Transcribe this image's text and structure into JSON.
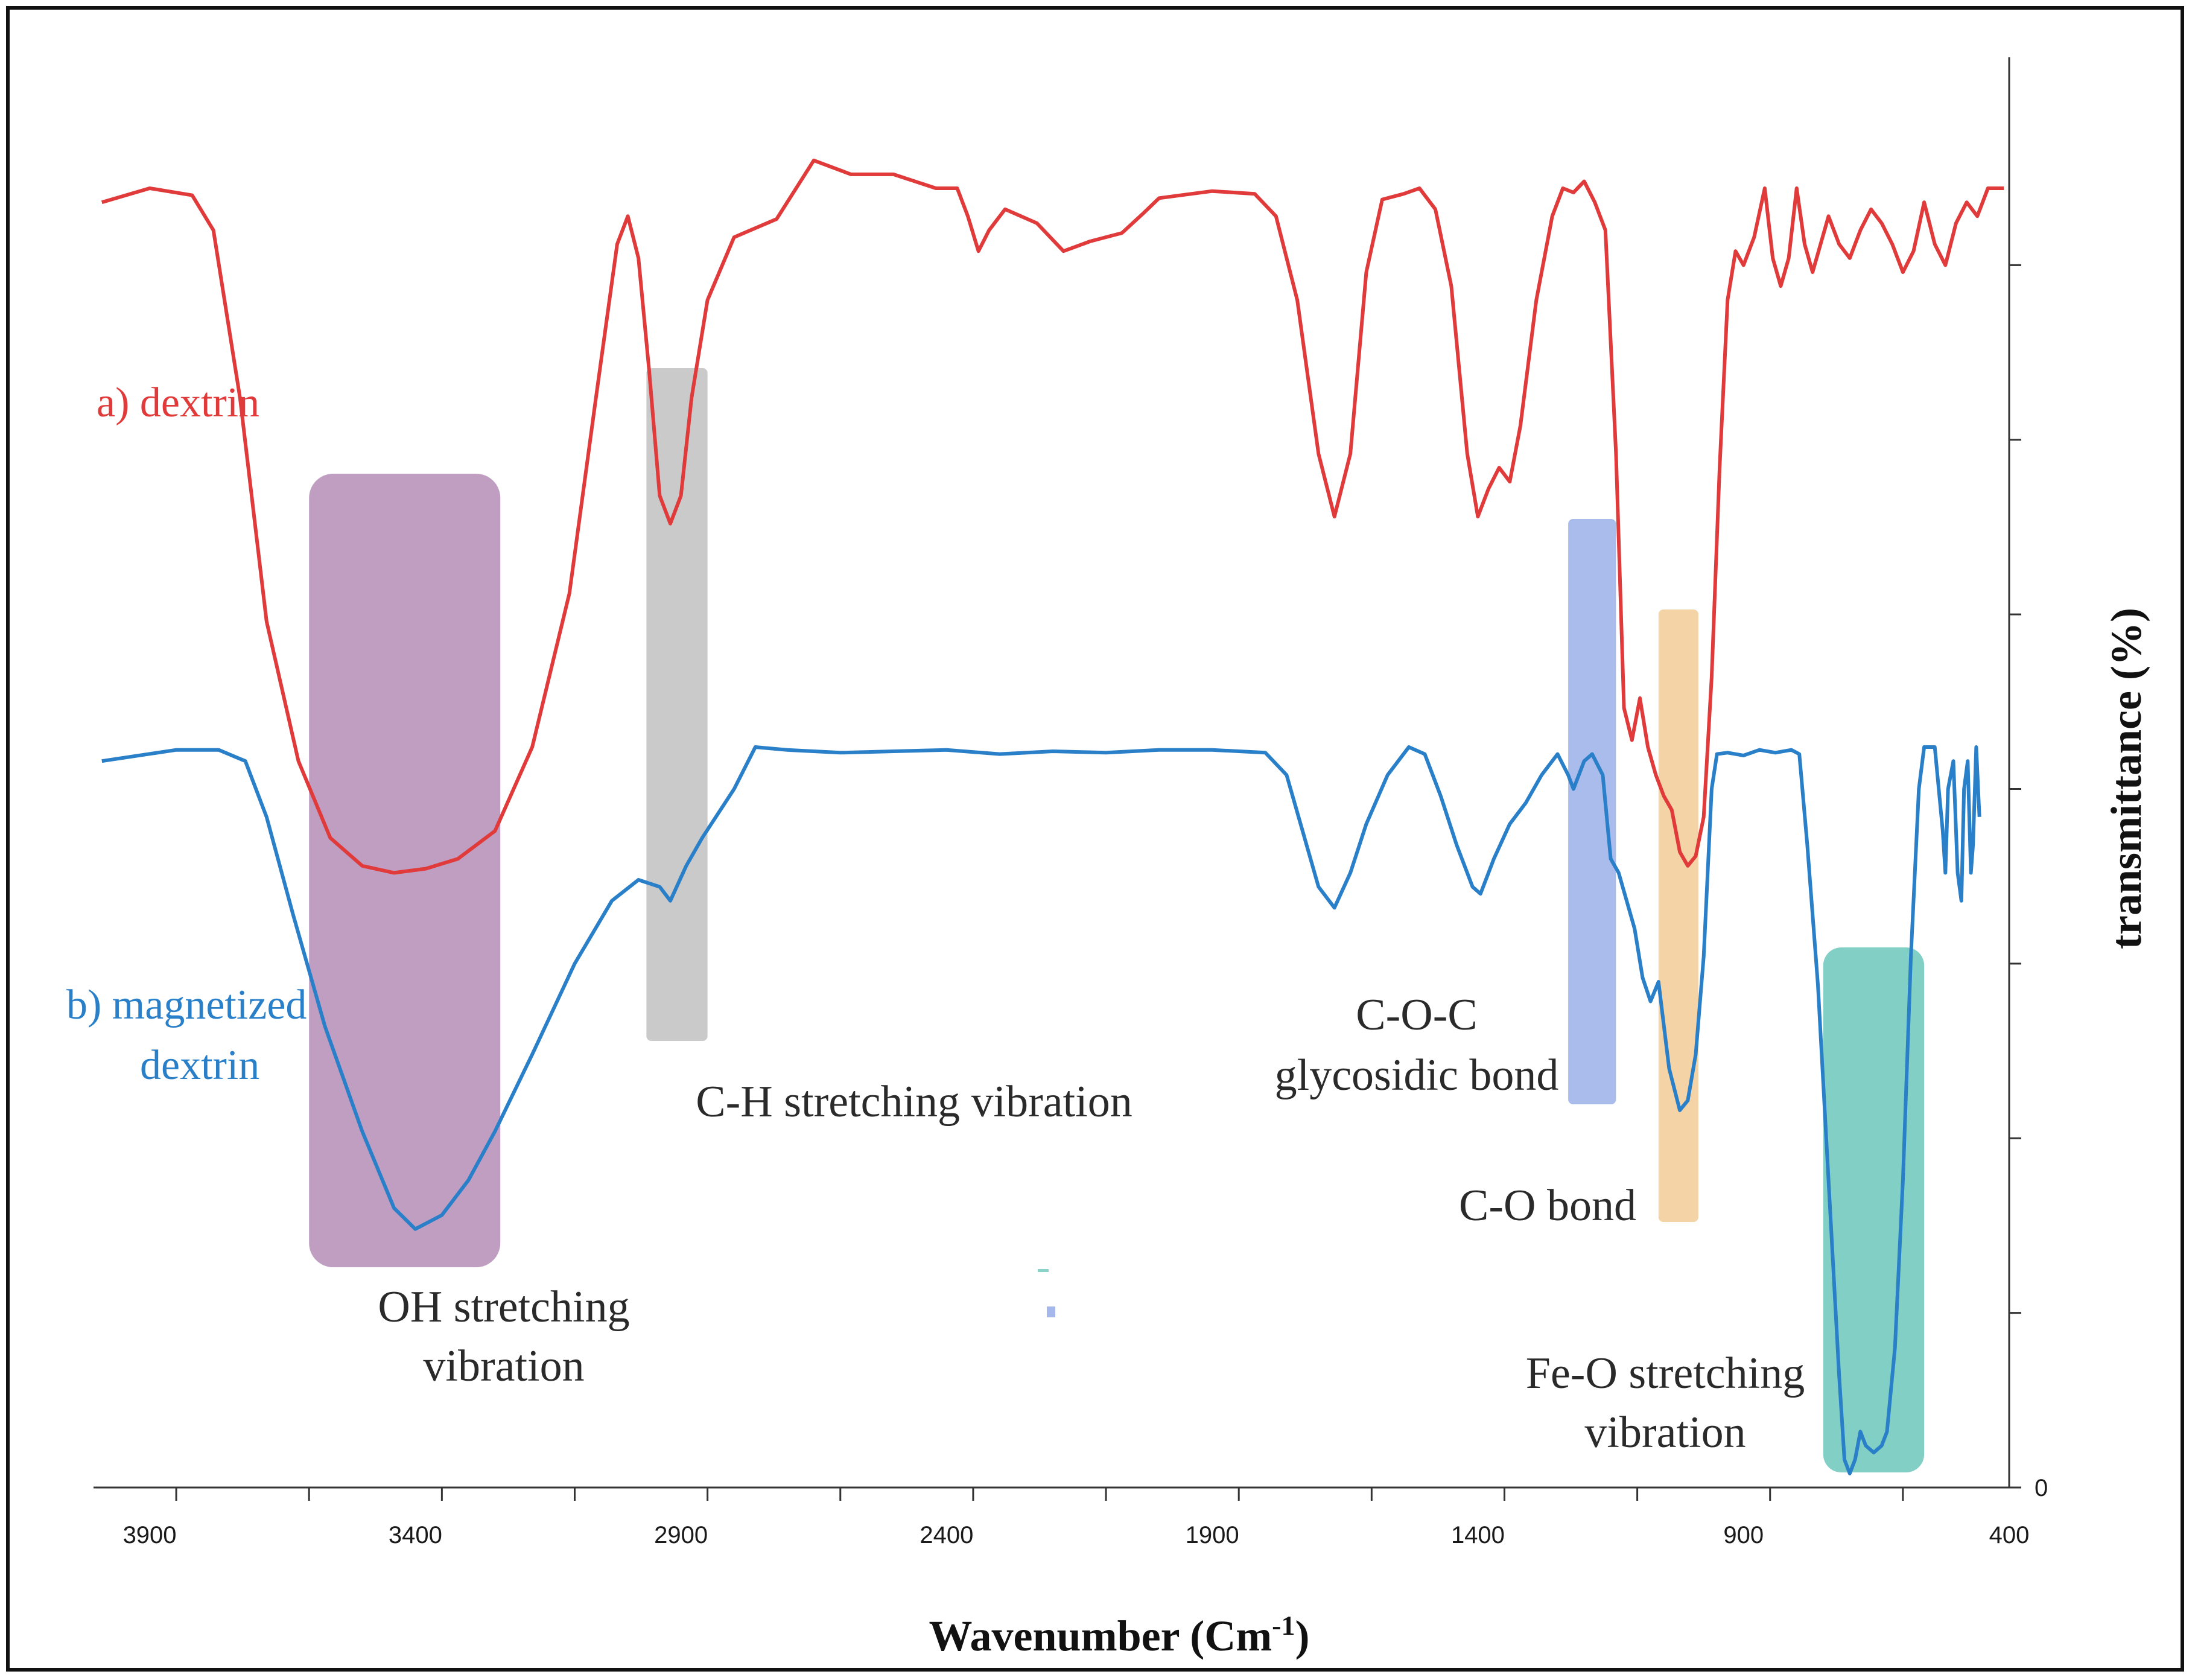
{
  "chart_data": {
    "type": "line",
    "title": "",
    "xlabel": "Wavenumber (Cm",
    "xlabel_superscript": "-1",
    "xlabel_close": ")",
    "ylabel": "transmittance (%)",
    "x_reversed": true,
    "xlim": [
      4000,
      400
    ],
    "ylim": [
      0,
      100
    ],
    "x_ticks": [
      3900,
      3400,
      2900,
      2400,
      1900,
      1400,
      900,
      400
    ],
    "x_tick_labels": [
      "3900",
      "3400",
      "2900",
      "2400",
      "1900",
      "1400",
      "900",
      "400"
    ],
    "y_tick_labels": [
      "0"
    ],
    "y_tick_count": 8,
    "series": [
      {
        "name": "a) dextrin",
        "color": "#e03a3a",
        "points": [
          [
            3990,
            92
          ],
          [
            3900,
            93
          ],
          [
            3820,
            92.5
          ],
          [
            3780,
            90
          ],
          [
            3730,
            78
          ],
          [
            3680,
            62
          ],
          [
            3620,
            52
          ],
          [
            3560,
            46.5
          ],
          [
            3500,
            44.5
          ],
          [
            3440,
            44
          ],
          [
            3380,
            44.3
          ],
          [
            3320,
            45
          ],
          [
            3250,
            47
          ],
          [
            3180,
            53
          ],
          [
            3110,
            64
          ],
          [
            3060,
            78
          ],
          [
            3020,
            89
          ],
          [
            3000,
            91
          ],
          [
            2980,
            88
          ],
          [
            2960,
            80
          ],
          [
            2940,
            71
          ],
          [
            2920,
            69
          ],
          [
            2900,
            71
          ],
          [
            2880,
            78
          ],
          [
            2850,
            85
          ],
          [
            2800,
            89.5
          ],
          [
            2720,
            90.8
          ],
          [
            2650,
            95
          ],
          [
            2580,
            94
          ],
          [
            2500,
            94
          ],
          [
            2420,
            93
          ],
          [
            2380,
            93
          ],
          [
            2360,
            91
          ],
          [
            2340,
            88.5
          ],
          [
            2320,
            90
          ],
          [
            2290,
            91.5
          ],
          [
            2230,
            90.5
          ],
          [
            2180,
            88.5
          ],
          [
            2130,
            89.2
          ],
          [
            2070,
            89.8
          ],
          [
            2030,
            91.2
          ],
          [
            2000,
            92.3
          ],
          [
            1900,
            92.8
          ],
          [
            1820,
            92.6
          ],
          [
            1780,
            91
          ],
          [
            1740,
            85
          ],
          [
            1700,
            74
          ],
          [
            1670,
            69.5
          ],
          [
            1640,
            74
          ],
          [
            1610,
            87
          ],
          [
            1580,
            92.2
          ],
          [
            1540,
            92.6
          ],
          [
            1510,
            93
          ],
          [
            1480,
            91.5
          ],
          [
            1450,
            86
          ],
          [
            1420,
            74
          ],
          [
            1400,
            69.5
          ],
          [
            1380,
            71.5
          ],
          [
            1360,
            73
          ],
          [
            1340,
            72
          ],
          [
            1320,
            76
          ],
          [
            1290,
            85
          ],
          [
            1260,
            91
          ],
          [
            1240,
            93
          ],
          [
            1220,
            92.7
          ],
          [
            1200,
            93.5
          ],
          [
            1180,
            92
          ],
          [
            1160,
            90
          ],
          [
            1140,
            74
          ],
          [
            1125,
            55.8
          ],
          [
            1110,
            53.5
          ],
          [
            1095,
            56.5
          ],
          [
            1080,
            53
          ],
          [
            1065,
            51
          ],
          [
            1050,
            49.5
          ],
          [
            1035,
            48.5
          ],
          [
            1020,
            45.5
          ],
          [
            1005,
            44.5
          ],
          [
            990,
            45.2
          ],
          [
            975,
            48
          ],
          [
            960,
            58
          ],
          [
            945,
            73
          ],
          [
            930,
            85
          ],
          [
            915,
            88.5
          ],
          [
            900,
            87.5
          ],
          [
            880,
            89.5
          ],
          [
            860,
            93
          ],
          [
            845,
            88
          ],
          [
            830,
            86
          ],
          [
            815,
            88
          ],
          [
            800,
            93
          ],
          [
            785,
            89
          ],
          [
            770,
            87
          ],
          [
            755,
            89
          ],
          [
            740,
            91
          ],
          [
            720,
            89
          ],
          [
            700,
            88
          ],
          [
            680,
            90
          ],
          [
            660,
            91.5
          ],
          [
            640,
            90.5
          ],
          [
            620,
            89
          ],
          [
            600,
            87
          ],
          [
            580,
            88.5
          ],
          [
            560,
            92
          ],
          [
            540,
            89
          ],
          [
            520,
            87.5
          ],
          [
            500,
            90.5
          ],
          [
            480,
            92
          ],
          [
            460,
            91
          ],
          [
            440,
            93
          ],
          [
            410,
            93
          ]
        ]
      },
      {
        "name": "b) magnetized dextrin",
        "color": "#2a7fc9",
        "points": [
          [
            3990,
            52
          ],
          [
            3850,
            52.8
          ],
          [
            3770,
            52.8
          ],
          [
            3720,
            52
          ],
          [
            3680,
            48
          ],
          [
            3630,
            41
          ],
          [
            3570,
            33
          ],
          [
            3500,
            25.5
          ],
          [
            3440,
            20
          ],
          [
            3400,
            18.5
          ],
          [
            3350,
            19.5
          ],
          [
            3300,
            22
          ],
          [
            3250,
            25.5
          ],
          [
            3180,
            31
          ],
          [
            3100,
            37.5
          ],
          [
            3030,
            42
          ],
          [
            2980,
            43.5
          ],
          [
            2940,
            43
          ],
          [
            2920,
            42
          ],
          [
            2890,
            44.5
          ],
          [
            2860,
            46.5
          ],
          [
            2800,
            50
          ],
          [
            2760,
            53
          ],
          [
            2700,
            52.8
          ],
          [
            2600,
            52.6
          ],
          [
            2500,
            52.7
          ],
          [
            2400,
            52.8
          ],
          [
            2300,
            52.5
          ],
          [
            2200,
            52.7
          ],
          [
            2100,
            52.6
          ],
          [
            2000,
            52.8
          ],
          [
            1900,
            52.8
          ],
          [
            1800,
            52.6
          ],
          [
            1760,
            51
          ],
          [
            1730,
            47
          ],
          [
            1700,
            43
          ],
          [
            1670,
            41.5
          ],
          [
            1640,
            44
          ],
          [
            1610,
            47.5
          ],
          [
            1570,
            51
          ],
          [
            1530,
            53
          ],
          [
            1500,
            52.5
          ],
          [
            1470,
            49.5
          ],
          [
            1440,
            46
          ],
          [
            1410,
            43
          ],
          [
            1395,
            42.5
          ],
          [
            1370,
            45
          ],
          [
            1340,
            47.5
          ],
          [
            1310,
            49
          ],
          [
            1280,
            51
          ],
          [
            1250,
            52.5
          ],
          [
            1230,
            51
          ],
          [
            1220,
            50
          ],
          [
            1200,
            52
          ],
          [
            1185,
            52.5
          ],
          [
            1165,
            51
          ],
          [
            1150,
            45
          ],
          [
            1135,
            44
          ],
          [
            1120,
            42
          ],
          [
            1105,
            40
          ],
          [
            1090,
            36.5
          ],
          [
            1075,
            34.8
          ],
          [
            1060,
            36.2
          ],
          [
            1040,
            30
          ],
          [
            1020,
            27
          ],
          [
            1005,
            27.7
          ],
          [
            990,
            31
          ],
          [
            975,
            38
          ],
          [
            960,
            50
          ],
          [
            950,
            52.5
          ],
          [
            930,
            52.6
          ],
          [
            900,
            52.4
          ],
          [
            870,
            52.8
          ],
          [
            840,
            52.6
          ],
          [
            810,
            52.8
          ],
          [
            795,
            52.5
          ],
          [
            780,
            46
          ],
          [
            760,
            36
          ],
          [
            740,
            22
          ],
          [
            720,
            8
          ],
          [
            710,
            2
          ],
          [
            700,
            1
          ],
          [
            690,
            2
          ],
          [
            680,
            4
          ],
          [
            670,
            3
          ],
          [
            655,
            2.5
          ],
          [
            640,
            3
          ],
          [
            630,
            4
          ],
          [
            615,
            10
          ],
          [
            600,
            22
          ],
          [
            585,
            38
          ],
          [
            570,
            50
          ],
          [
            560,
            53
          ],
          [
            540,
            53
          ],
          [
            525,
            47
          ],
          [
            520,
            44
          ],
          [
            515,
            50
          ],
          [
            505,
            52
          ],
          [
            497,
            44
          ],
          [
            490,
            42
          ],
          [
            485,
            50
          ],
          [
            478,
            52
          ],
          [
            472,
            44
          ],
          [
            468,
            46
          ],
          [
            462,
            53
          ],
          [
            456,
            48
          ]
        ]
      }
    ],
    "bands": [
      {
        "label_lines": [
          "OH stretching",
          "vibration"
        ],
        "color": "#a97eae",
        "x_from": 3600,
        "x_to": 3240
      },
      {
        "label_lines": [
          "C-H stretching vibration"
        ],
        "color": "#b8b8b8",
        "x_from": 2965,
        "x_to": 2850
      },
      {
        "label_lines": [
          "C-O-C",
          "glycosidic bond"
        ],
        "color": "#8ea5e6",
        "x_from": 1230,
        "x_to": 1140
      },
      {
        "label_lines": [
          "C-O bond"
        ],
        "color": "#f0c48a",
        "x_from": 1060,
        "x_to": 985
      },
      {
        "label_lines": [
          "Fe-O stretching",
          "vibration"
        ],
        "color": "#58c0b2",
        "x_from": 750,
        "x_to": 560
      }
    ]
  }
}
